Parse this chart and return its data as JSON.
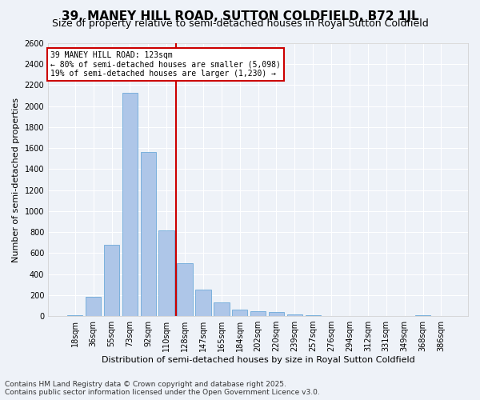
{
  "title": "39, MANEY HILL ROAD, SUTTON COLDFIELD, B72 1JL",
  "subtitle": "Size of property relative to semi-detached houses in Royal Sutton Coldfield",
  "xlabel": "Distribution of semi-detached houses by size in Royal Sutton Coldfield",
  "ylabel": "Number of semi-detached properties",
  "categories": [
    "18sqm",
    "36sqm",
    "55sqm",
    "73sqm",
    "92sqm",
    "110sqm",
    "128sqm",
    "147sqm",
    "165sqm",
    "184sqm",
    "202sqm",
    "220sqm",
    "239sqm",
    "257sqm",
    "276sqm",
    "294sqm",
    "312sqm",
    "331sqm",
    "349sqm",
    "368sqm",
    "386sqm"
  ],
  "values": [
    10,
    180,
    680,
    2130,
    1560,
    820,
    500,
    250,
    130,
    60,
    45,
    35,
    15,
    5,
    2,
    0,
    2,
    0,
    0,
    5,
    0
  ],
  "bar_color": "#aec6e8",
  "bar_edge_color": "#5a9fd4",
  "vline_pos": 5.5,
  "vline_color": "#cc0000",
  "annotation_title": "39 MANEY HILL ROAD: 123sqm",
  "annotation_line1": "← 80% of semi-detached houses are smaller (5,098)",
  "annotation_line2": "19% of semi-detached houses are larger (1,230) →",
  "annotation_box_color": "#cc0000",
  "ylim": [
    0,
    2600
  ],
  "yticks": [
    0,
    200,
    400,
    600,
    800,
    1000,
    1200,
    1400,
    1600,
    1800,
    2000,
    2200,
    2400,
    2600
  ],
  "bg_color": "#eef2f8",
  "footer_line1": "Contains HM Land Registry data © Crown copyright and database right 2025.",
  "footer_line2": "Contains public sector information licensed under the Open Government Licence v3.0.",
  "title_fontsize": 11,
  "subtitle_fontsize": 9,
  "axis_label_fontsize": 8,
  "tick_fontsize": 7,
  "footer_fontsize": 6.5
}
